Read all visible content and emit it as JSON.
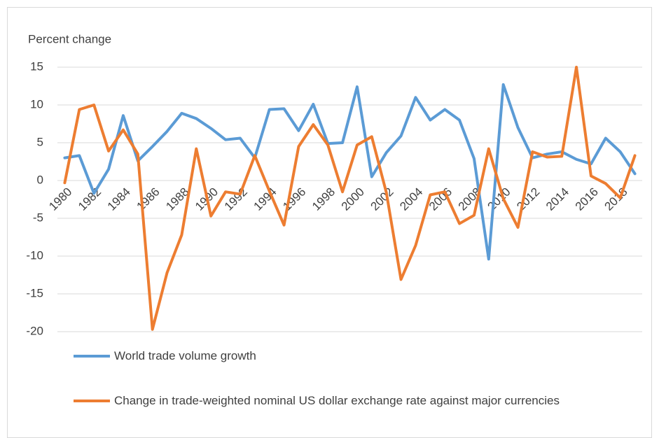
{
  "chart_data": {
    "type": "line",
    "y_axis_title": "Percent change",
    "categories": [
      "1980",
      null,
      "1982",
      null,
      "1984",
      null,
      "1986",
      null,
      "1988",
      null,
      "1990",
      null,
      "1992",
      null,
      "1994",
      null,
      "1996",
      null,
      "1998",
      null,
      "2000",
      null,
      "2002",
      null,
      "2004",
      null,
      "2006",
      null,
      "2008",
      null,
      "2010",
      null,
      "2012",
      null,
      "2014",
      null,
      "2016",
      null,
      "2018",
      null
    ],
    "series": [
      {
        "name": "World trade volume growth",
        "color": "#5b9bd5",
        "values": [
          3.0,
          3.3,
          -1.7,
          1.5,
          8.6,
          2.6,
          4.5,
          6.5,
          8.9,
          8.2,
          6.9,
          5.4,
          5.6,
          3.0,
          9.4,
          9.5,
          6.6,
          10.1,
          4.9,
          5.0,
          12.4,
          0.5,
          3.7,
          5.9,
          11.0,
          8.0,
          9.4,
          8.0,
          2.9,
          -10.4,
          12.7,
          7.0,
          3.0,
          3.5,
          3.8,
          2.8,
          2.2,
          5.6,
          3.8,
          0.9
        ]
      },
      {
        "name": "Change in trade-weighted nominal US dollar exchange rate against major currencies",
        "color": "#ed7d31",
        "values": [
          -0.3,
          9.4,
          10.0,
          3.9,
          6.7,
          3.5,
          -19.7,
          -12.2,
          -7.2,
          4.2,
          -4.7,
          -1.5,
          -1.8,
          3.3,
          -1.4,
          -5.9,
          4.5,
          7.4,
          4.7,
          -1.5,
          4.7,
          5.8,
          -1.6,
          -13.1,
          -8.6,
          -1.9,
          -1.5,
          -5.7,
          -4.6,
          4.2,
          -2.4,
          -6.2,
          3.8,
          3.1,
          3.2,
          15.0,
          0.6,
          -0.4,
          -2.3,
          3.3
        ]
      }
    ],
    "ylim": [
      -20,
      15
    ],
    "yticks": [
      -20,
      -15,
      -10,
      -5,
      0,
      5,
      10,
      15
    ],
    "grid": true
  }
}
